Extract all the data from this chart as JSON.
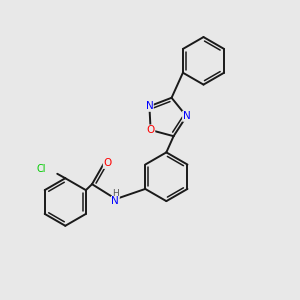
{
  "background_color": "#e8e8e8",
  "bond_color": "#1a1a1a",
  "atom_colors": {
    "N": "#0000ff",
    "O": "#ff0000",
    "Cl": "#00cc00",
    "C": "#1a1a1a",
    "H": "#555555"
  },
  "figsize": [
    3.0,
    3.0
  ],
  "dpi": 100,
  "lw": 1.4,
  "lw2": 1.1
}
